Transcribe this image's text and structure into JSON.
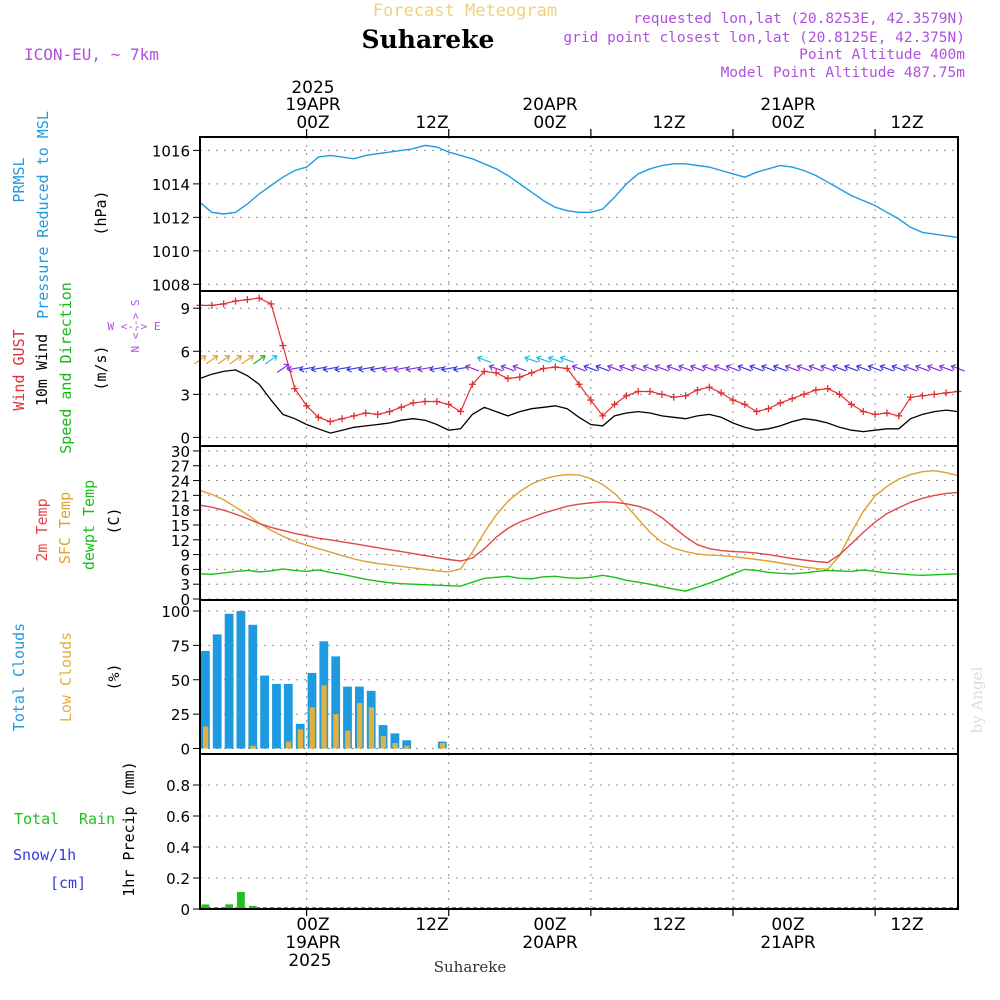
{
  "header": {
    "super_title": "Forecast Meteogram",
    "location": "Suhareke",
    "model": "ICON-EU, ~ 7km",
    "requested": "requested lon,lat (20.8253E, 42.3579N)",
    "grid_point": "grid point closest lon,lat (20.8125E, 42.375N)",
    "point_altitude": "Point Altitude 400m",
    "model_altitude": "Model Point Altitude 487.75m"
  },
  "top_axis": {
    "year": "2025",
    "dates": [
      "19APR",
      "20APR",
      "21APR"
    ],
    "ticks": [
      "00Z",
      "12Z",
      "00Z",
      "12Z",
      "00Z",
      "12Z"
    ]
  },
  "bottom_axis": {
    "ticks": [
      "00Z",
      "12Z",
      "00Z",
      "12Z",
      "00Z",
      "12Z"
    ],
    "dates": [
      "19APR",
      "20APR",
      "21APR"
    ],
    "year": "2025",
    "footer": "Suhareke"
  },
  "watermark": "by Angel",
  "colors": {
    "pressure": "#1e9be0",
    "gust": "#e03030",
    "wind": "#000000",
    "direction": "#18b818",
    "compass": "#b050e0",
    "t2m": "#e04848",
    "tsfc": "#e0a030",
    "dewpt": "#18c018",
    "total_clouds": "#1e9be0",
    "low_clouds": "#e0b040",
    "rain": "#20c020",
    "snow": "#3838e0",
    "header_purple": "#b050e0",
    "super_title": "#f0d080"
  },
  "panels": {
    "pressure": {
      "labels": [
        "PRMSL",
        "Pressure Reduced to MSL"
      ],
      "unit": "(hPa)",
      "ticks": [
        "1008",
        "1010",
        "1012",
        "1014",
        "1016"
      ]
    },
    "wind": {
      "labels": [
        "Wind GUST",
        "10m Wind",
        "Speed and Direction"
      ],
      "unit": "(m/s)",
      "ticks": [
        "0",
        "3",
        "6",
        "9"
      ],
      "compass_ns": "N <--> S",
      "compass_we": "W <--> E"
    },
    "temperature": {
      "labels": [
        "2m Temp",
        "SFC Temp",
        "dewpt Temp"
      ],
      "unit": "(C)",
      "ticks": [
        "0",
        "3",
        "6",
        "9",
        "12",
        "15",
        "18",
        "21",
        "24",
        "27",
        "30"
      ]
    },
    "clouds": {
      "labels": [
        "Total Clouds",
        "Low Clouds"
      ],
      "unit": "(%)",
      "ticks": [
        "0",
        "25",
        "50",
        "75",
        "100"
      ]
    },
    "precip": {
      "labels": [
        "Total",
        "Rain",
        "Snow/1h",
        "[cm]"
      ],
      "unit": "1hr Precip (mm)",
      "ticks": [
        "0",
        "0.2",
        "0.4",
        "0.6",
        "0.8"
      ]
    }
  },
  "chart_data": {
    "type": "meteogram",
    "time_axis": {
      "unit": "hours from 2025-04-18 15Z",
      "range": [
        0,
        64
      ],
      "step": 1
    },
    "pressure": {
      "name": "PRMSL (hPa)",
      "ylim": [
        1007.6,
        1016.8
      ],
      "values": [
        1012.9,
        1012.3,
        1012.2,
        1012.3,
        1012.8,
        1013.4,
        1013.9,
        1014.4,
        1014.8,
        1015.0,
        1015.6,
        1015.7,
        1015.6,
        1015.5,
        1015.7,
        1015.8,
        1015.9,
        1016.0,
        1016.1,
        1016.3,
        1016.2,
        1015.9,
        1015.7,
        1015.5,
        1015.2,
        1014.9,
        1014.5,
        1014.0,
        1013.5,
        1013.0,
        1012.6,
        1012.4,
        1012.3,
        1012.3,
        1012.5,
        1013.2,
        1014.0,
        1014.6,
        1014.9,
        1015.1,
        1015.2,
        1015.2,
        1015.1,
        1015.0,
        1014.8,
        1014.6,
        1014.4,
        1014.7,
        1014.9,
        1015.1,
        1015.0,
        1014.8,
        1014.5,
        1014.1,
        1013.7,
        1013.3,
        1013.0,
        1012.7,
        1012.3,
        1011.9,
        1011.4,
        1011.1,
        1011.0,
        1010.9,
        1010.8
      ]
    },
    "wind_gust": {
      "name": "Wind GUST (m/s)",
      "ylim": [
        0,
        10
      ],
      "values": [
        9.2,
        9.2,
        9.3,
        9.5,
        9.6,
        9.7,
        9.3,
        6.4,
        3.4,
        2.2,
        1.4,
        1.1,
        1.3,
        1.5,
        1.7,
        1.6,
        1.8,
        2.1,
        2.4,
        2.5,
        2.5,
        2.3,
        1.8,
        3.7,
        4.6,
        4.5,
        4.1,
        4.2,
        4.5,
        4.8,
        4.9,
        4.8,
        3.7,
        2.6,
        1.5,
        2.3,
        2.9,
        3.2,
        3.2,
        3.0,
        2.8,
        2.9,
        3.3,
        3.5,
        3.1,
        2.6,
        2.3,
        1.8,
        2.0,
        2.4,
        2.7,
        3.0,
        3.3,
        3.4,
        3.0,
        2.3,
        1.8,
        1.6,
        1.7,
        1.5,
        2.8,
        2.9,
        3.0,
        3.1,
        3.2
      ]
    },
    "wind_speed": {
      "name": "10m Wind (m/s)",
      "ylim": [
        0,
        10
      ],
      "values": [
        4.1,
        4.4,
        4.6,
        4.7,
        4.3,
        3.7,
        2.6,
        1.6,
        1.3,
        0.9,
        0.6,
        0.3,
        0.5,
        0.7,
        0.8,
        0.9,
        1.0,
        1.2,
        1.3,
        1.2,
        0.9,
        0.5,
        0.6,
        1.6,
        2.1,
        1.8,
        1.5,
        1.8,
        2.0,
        2.1,
        2.2,
        2.0,
        1.4,
        0.9,
        0.8,
        1.5,
        1.7,
        1.8,
        1.7,
        1.5,
        1.4,
        1.3,
        1.5,
        1.6,
        1.4,
        1.0,
        0.7,
        0.5,
        0.6,
        0.8,
        1.1,
        1.3,
        1.2,
        1.0,
        0.7,
        0.5,
        0.4,
        0.5,
        0.6,
        0.6,
        1.3,
        1.6,
        1.8,
        1.9,
        1.8
      ]
    },
    "temp_2m": {
      "name": "2m Temp (C)",
      "ylim": [
        0,
        31
      ],
      "values": [
        19.0,
        18.6,
        18.0,
        17.2,
        16.3,
        15.3,
        14.5,
        13.9,
        13.3,
        12.8,
        12.3,
        12.0,
        11.6,
        11.2,
        10.8,
        10.4,
        10.0,
        9.6,
        9.2,
        8.8,
        8.4,
        8.0,
        7.7,
        8.3,
        10.2,
        12.5,
        14.3,
        15.6,
        16.5,
        17.4,
        18.1,
        18.8,
        19.2,
        19.5,
        19.7,
        19.6,
        19.3,
        18.8,
        18.0,
        16.5,
        14.5,
        12.6,
        11.0,
        10.2,
        9.8,
        9.6,
        9.5,
        9.3,
        9.0,
        8.6,
        8.2,
        7.9,
        7.6,
        7.4,
        9.0,
        11.2,
        13.5,
        15.6,
        17.3,
        18.5,
        19.6,
        20.4,
        21.0,
        21.4,
        21.6
      ]
    },
    "temp_sfc": {
      "name": "SFC Temp (C)",
      "ylim": [
        0,
        31
      ],
      "values": [
        22.0,
        21.2,
        20.1,
        18.6,
        17.1,
        15.4,
        13.9,
        12.7,
        11.7,
        10.9,
        10.2,
        9.5,
        8.8,
        8.1,
        7.6,
        7.2,
        6.9,
        6.6,
        6.3,
        6.0,
        5.7,
        5.5,
        6.1,
        9.5,
        13.5,
        17.0,
        19.8,
        21.8,
        23.3,
        24.3,
        24.9,
        25.2,
        25.1,
        24.4,
        23.2,
        21.4,
        18.9,
        16.2,
        13.5,
        11.5,
        10.3,
        9.6,
        9.1,
        8.9,
        8.8,
        8.6,
        8.3,
        8.0,
        7.7,
        7.3,
        6.9,
        6.5,
        6.2,
        6.0,
        8.8,
        13.5,
        17.8,
        20.9,
        22.8,
        24.3,
        25.2,
        25.8,
        26.0,
        25.6,
        25.0
      ]
    },
    "dewpt": {
      "name": "dewpt Temp (C)",
      "ylim": [
        0,
        31
      ],
      "values": [
        5.1,
        5.0,
        5.3,
        5.6,
        5.8,
        5.5,
        5.7,
        6.1,
        5.8,
        5.6,
        5.9,
        5.4,
        5.0,
        4.5,
        4.0,
        3.6,
        3.3,
        3.1,
        3.0,
        2.9,
        2.8,
        2.7,
        2.6,
        3.4,
        4.2,
        4.4,
        4.6,
        4.2,
        4.1,
        4.5,
        4.6,
        4.3,
        4.2,
        4.4,
        4.8,
        4.4,
        3.8,
        3.4,
        3.0,
        2.5,
        2.0,
        1.6,
        2.4,
        3.2,
        4.1,
        5.1,
        6.0,
        5.8,
        5.4,
        5.2,
        5.1,
        5.3,
        5.6,
        5.8,
        5.7,
        5.6,
        5.9,
        5.6,
        5.3,
        5.1,
        4.9,
        4.8,
        4.9,
        5.0,
        5.1
      ]
    },
    "total_clouds": {
      "name": "Total Clouds (%)",
      "ylim": [
        0,
        100
      ],
      "values": [
        71,
        83,
        98,
        100,
        90,
        53,
        47,
        47,
        18,
        55,
        78,
        67,
        45,
        45,
        42,
        17,
        11,
        6,
        0,
        0,
        5,
        0,
        0,
        0,
        0,
        0,
        0,
        0,
        0,
        0,
        0,
        0,
        0,
        0,
        0,
        0,
        0,
        0,
        0,
        0,
        0,
        0,
        0,
        0,
        0,
        0,
        0,
        0,
        0,
        0,
        0,
        0,
        0,
        0,
        0,
        0,
        0,
        0,
        0,
        0,
        0,
        0,
        0,
        0,
        0
      ]
    },
    "low_clouds": {
      "name": "Low Clouds (%)",
      "ylim": [
        0,
        100
      ],
      "values": [
        16,
        0,
        0,
        0,
        2,
        0,
        0,
        5,
        14,
        30,
        46,
        25,
        13,
        33,
        30,
        9,
        4,
        2,
        0,
        0,
        4,
        0,
        0,
        0,
        0,
        0,
        0,
        0,
        0,
        0,
        0,
        0,
        0,
        0,
        0,
        0,
        0,
        0,
        0,
        0,
        0,
        0,
        0,
        0,
        0,
        0,
        0,
        0,
        0,
        0,
        0,
        0,
        0,
        0,
        0,
        0,
        0,
        0,
        0,
        0,
        0,
        0,
        0,
        0,
        0
      ]
    },
    "precip": {
      "name": "1hr Precip (mm)",
      "ylim": [
        0,
        1.0
      ],
      "values": [
        0.03,
        0,
        0.03,
        0.11,
        0.02,
        0,
        0,
        0,
        0,
        0,
        0,
        0,
        0,
        0,
        0,
        0,
        0,
        0,
        0,
        0,
        0,
        0,
        0,
        0,
        0,
        0,
        0,
        0,
        0,
        0,
        0,
        0,
        0,
        0,
        0,
        0,
        0,
        0,
        0,
        0,
        0,
        0,
        0,
        0,
        0,
        0,
        0,
        0,
        0,
        0,
        0,
        0,
        0,
        0,
        0,
        0,
        0,
        0,
        0,
        0,
        0,
        0,
        0,
        0,
        0
      ]
    }
  }
}
